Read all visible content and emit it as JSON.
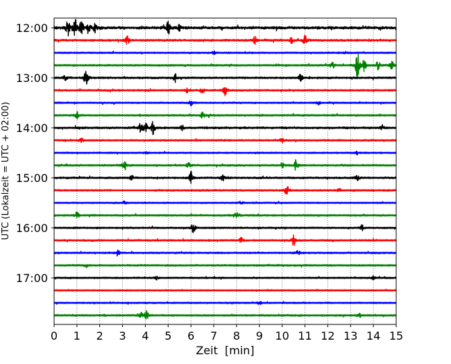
{
  "chart_data": {
    "type": "line",
    "subtype": "helicorder",
    "title": "",
    "xlabel": "Zeit  [min]",
    "ylabel": "UTC (Lokalzeit = UTC + 02:00)",
    "xlim": [
      0,
      15
    ],
    "x_ticks": [
      "0",
      "1",
      "2",
      "3",
      "4",
      "5",
      "6",
      "7",
      "8",
      "9",
      "10",
      "11",
      "12",
      "13",
      "14",
      "15"
    ],
    "y_tick_labels": [
      "12:00",
      "13:00",
      "14:00",
      "15:00",
      "16:00",
      "17:00"
    ],
    "trace_interval_min": 15,
    "start_time": "12:00",
    "trace_count": 24,
    "grid": "vertical dotted at each minute",
    "colors": [
      "#000000",
      "#ff0000",
      "#0000ff",
      "#008000"
    ],
    "traces": [
      {
        "start": "12:00",
        "noise": 1.6,
        "events": [
          [
            0.6,
            9
          ],
          [
            0.9,
            11
          ],
          [
            1.2,
            8
          ],
          [
            1.5,
            6
          ],
          [
            1.8,
            5
          ],
          [
            5.0,
            8
          ],
          [
            5.5,
            3
          ]
        ]
      },
      {
        "start": "12:15",
        "noise": 1.2,
        "events": [
          [
            3.2,
            5
          ],
          [
            8.8,
            4
          ],
          [
            10.4,
            3
          ],
          [
            11.0,
            6
          ]
        ]
      },
      {
        "start": "12:30",
        "noise": 0.9,
        "events": [
          [
            7.0,
            2
          ],
          [
            12.8,
            2
          ]
        ]
      },
      {
        "start": "12:45",
        "noise": 1.0,
        "events": [
          [
            12.2,
            4
          ],
          [
            13.3,
            16
          ],
          [
            13.6,
            7
          ],
          [
            14.2,
            6
          ],
          [
            14.8,
            5
          ]
        ]
      },
      {
        "start": "13:00",
        "noise": 1.1,
        "events": [
          [
            0.5,
            3
          ],
          [
            1.4,
            10
          ],
          [
            5.3,
            5
          ],
          [
            10.8,
            4
          ]
        ]
      },
      {
        "start": "13:15",
        "noise": 1.0,
        "events": [
          [
            5.8,
            3
          ],
          [
            6.5,
            3
          ],
          [
            7.5,
            6
          ]
        ]
      },
      {
        "start": "13:30",
        "noise": 0.9,
        "events": [
          [
            6.0,
            3
          ],
          [
            11.6,
            2
          ]
        ]
      },
      {
        "start": "13:45",
        "noise": 1.0,
        "events": [
          [
            1.0,
            4
          ],
          [
            6.5,
            3
          ],
          [
            6.8,
            2
          ]
        ]
      },
      {
        "start": "14:00",
        "noise": 1.2,
        "events": [
          [
            3.8,
            6
          ],
          [
            4.0,
            6
          ],
          [
            4.35,
            8
          ],
          [
            5.6,
            3
          ],
          [
            14.4,
            3
          ]
        ]
      },
      {
        "start": "14:15",
        "noise": 1.0,
        "events": [
          [
            1.2,
            2
          ],
          [
            10.0,
            2
          ]
        ]
      },
      {
        "start": "14:30",
        "noise": 0.9,
        "events": [
          [
            4.0,
            2
          ],
          [
            13.3,
            2
          ]
        ]
      },
      {
        "start": "14:45",
        "noise": 1.0,
        "events": [
          [
            3.1,
            5
          ],
          [
            5.9,
            3
          ],
          [
            10.0,
            3
          ],
          [
            10.6,
            6
          ]
        ]
      },
      {
        "start": "15:00",
        "noise": 1.1,
        "events": [
          [
            3.4,
            3
          ],
          [
            6.0,
            7
          ],
          [
            7.4,
            3
          ],
          [
            13.3,
            3
          ]
        ]
      },
      {
        "start": "15:15",
        "noise": 0.9,
        "gap": [
          2.5,
          4.4
        ],
        "events": [
          [
            10.2,
            6
          ],
          [
            12.5,
            2
          ]
        ]
      },
      {
        "start": "15:30",
        "noise": 0.9,
        "events": [
          [
            3.1,
            2
          ],
          [
            8.2,
            2
          ]
        ]
      },
      {
        "start": "15:45",
        "noise": 1.0,
        "events": [
          [
            1.0,
            4
          ],
          [
            8.0,
            3
          ]
        ]
      },
      {
        "start": "16:00",
        "noise": 1.0,
        "events": [
          [
            6.1,
            6
          ],
          [
            13.5,
            3
          ]
        ]
      },
      {
        "start": "16:15",
        "noise": 1.0,
        "events": [
          [
            8.2,
            3
          ],
          [
            10.5,
            6
          ]
        ]
      },
      {
        "start": "16:30",
        "noise": 1.0,
        "events": [
          [
            2.8,
            3
          ],
          [
            10.7,
            3
          ]
        ]
      },
      {
        "start": "16:45",
        "noise": 1.0,
        "events": [
          [
            1.4,
            2
          ]
        ]
      },
      {
        "start": "17:00",
        "noise": 0.9,
        "events": [
          [
            4.5,
            2
          ],
          [
            14.0,
            2
          ]
        ]
      },
      {
        "start": "17:15",
        "noise": 0.8,
        "events": []
      },
      {
        "start": "17:30",
        "noise": 0.9,
        "events": [
          [
            9.0,
            2
          ]
        ]
      },
      {
        "start": "17:45",
        "noise": 1.0,
        "events": [
          [
            3.8,
            3
          ],
          [
            4.05,
            5
          ],
          [
            13.4,
            2
          ]
        ]
      }
    ]
  }
}
